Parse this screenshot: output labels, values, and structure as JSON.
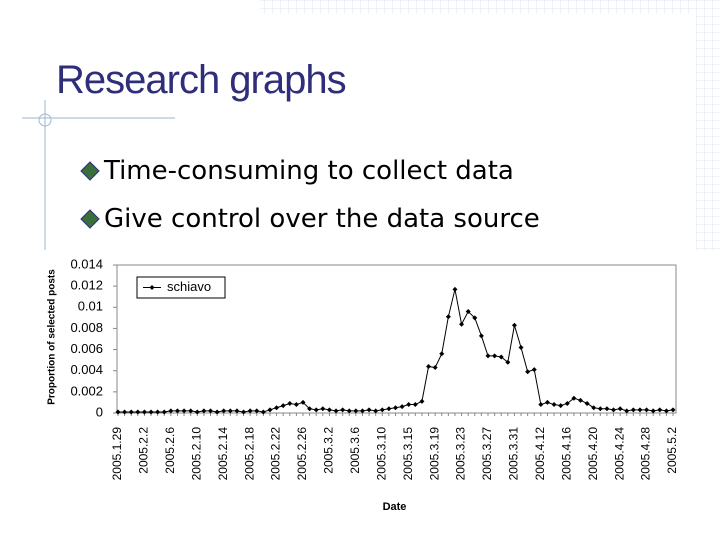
{
  "slide": {
    "title": "Research graphs",
    "bullets": [
      "Time-consuming to collect data",
      "Give control over the data source"
    ]
  },
  "chart_data": {
    "type": "line",
    "x_label": "Date",
    "y_label": "Proportion of selected posts",
    "categories": [
      "2005.1.29",
      null,
      null,
      null,
      "2005.2.2",
      null,
      null,
      null,
      "2005.2.6",
      null,
      null,
      null,
      "2005.2.10",
      null,
      null,
      null,
      "2005.2.14",
      null,
      null,
      null,
      "2005.2.18",
      null,
      null,
      null,
      "2005.2.22",
      null,
      null,
      null,
      "2005.2.26",
      null,
      null,
      null,
      "2005.3.2",
      null,
      null,
      null,
      "2005.3.6",
      null,
      null,
      null,
      "2005.3.10",
      null,
      null,
      null,
      "2005.3.15",
      null,
      null,
      null,
      "2005.3.19",
      null,
      null,
      null,
      "2005.3.23",
      null,
      null,
      null,
      "2005.3.27",
      null,
      null,
      null,
      "2005.3.31",
      null,
      null,
      null,
      "2005.4.12",
      null,
      null,
      null,
      "2005.4.16",
      null,
      null,
      null,
      "2005.4.20",
      null,
      null,
      null,
      "2005.4.24",
      null,
      null,
      null,
      "2005.4.28",
      null,
      null,
      null,
      "2005.5.2"
    ],
    "series": [
      {
        "name": "schiavo",
        "color": "#000000",
        "values": [
          0.0001,
          0.0001,
          0.0001,
          0.0001,
          0.0001,
          0.0001,
          0.0001,
          0.0001,
          0.0002,
          0.0002,
          0.0002,
          0.0002,
          0.0001,
          0.0002,
          0.0002,
          0.0001,
          0.0002,
          0.0002,
          0.0002,
          0.0001,
          0.0002,
          0.0002,
          0.0001,
          0.0003,
          0.0005,
          0.0007,
          0.0009,
          0.0008,
          0.001,
          0.0004,
          0.0003,
          0.0004,
          0.0003,
          0.0002,
          0.0003,
          0.0002,
          0.0002,
          0.0002,
          0.0003,
          0.0002,
          0.0003,
          0.0004,
          0.0005,
          0.0006,
          0.0008,
          0.0008,
          0.0011,
          0.0044,
          0.0043,
          0.0056,
          0.0091,
          0.0117,
          0.0084,
          0.0096,
          0.009,
          0.0073,
          0.0054,
          0.0054,
          0.0053,
          0.0048,
          0.0083,
          0.0062,
          0.0039,
          0.0041,
          0.0008,
          0.001,
          0.0008,
          0.0007,
          0.0009,
          0.0014,
          0.0012,
          0.0009,
          0.0005,
          0.0004,
          0.0004,
          0.0003,
          0.0004,
          0.0002,
          0.0003,
          0.0003,
          0.0003,
          0.0002,
          0.0003,
          0.0002,
          0.0003
        ]
      }
    ],
    "ylim": [
      0,
      0.014
    ],
    "yticks": [
      0,
      0.002,
      0.004,
      0.006,
      0.008,
      0.01,
      0.012,
      0.014
    ],
    "legend": "top-left",
    "grid": false
  }
}
